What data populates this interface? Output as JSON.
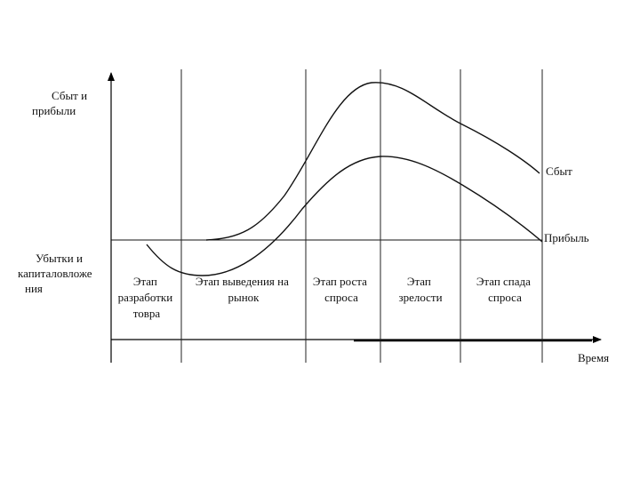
{
  "diagram": {
    "y_axis_label_top": [
      "Сбыт и",
      "прибыли"
    ],
    "y_axis_label_bottom": [
      "Убытки и",
      "капиталовложе",
      "ния"
    ],
    "x_axis_label": "Время",
    "series": {
      "sales": "Сбыт",
      "profit": "Прибыль"
    },
    "stages": [
      [
        "Этап",
        "разработки",
        "товра"
      ],
      [
        "Этап выведения на",
        "рынок"
      ],
      [
        "Этап роста",
        "спроса"
      ],
      [
        "Этап",
        "зрелости"
      ],
      [
        "Этап спада",
        "спроса"
      ]
    ]
  }
}
